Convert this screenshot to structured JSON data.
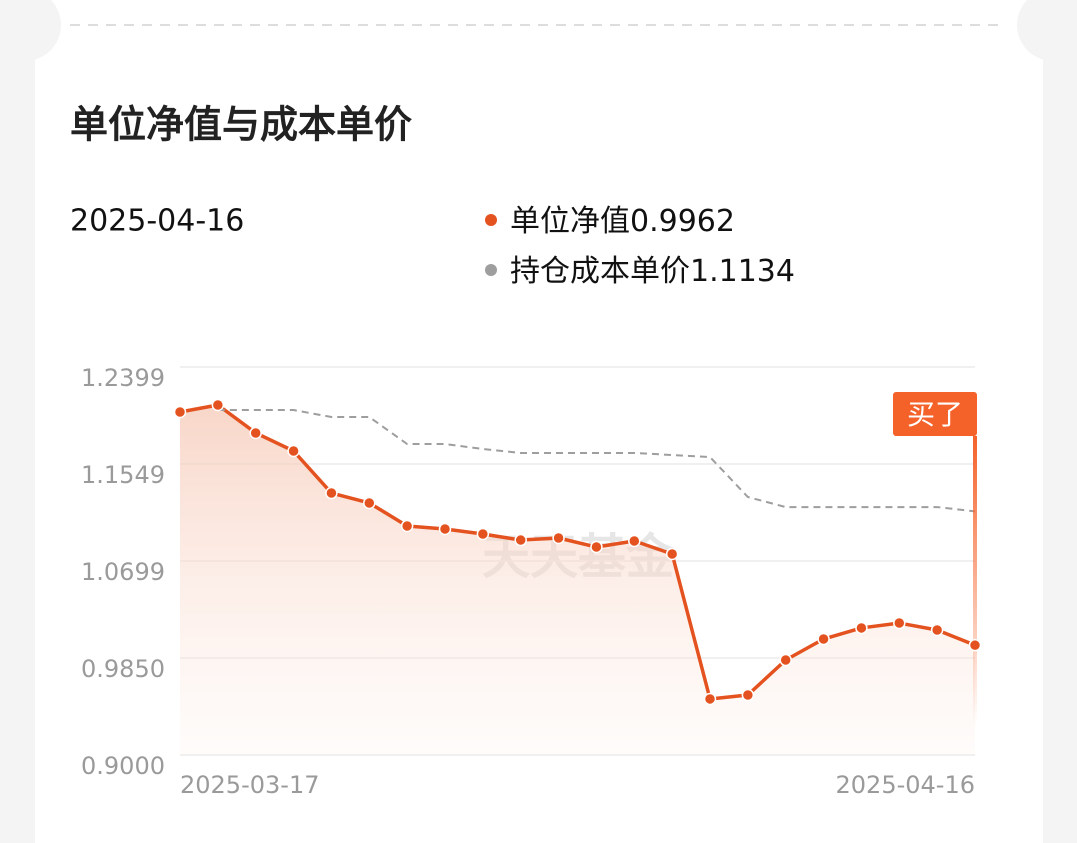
{
  "chart_data": {
    "type": "line",
    "title": "单位净值与成本单价",
    "categories": [
      "2025-03-17",
      null,
      null,
      null,
      null,
      null,
      null,
      null,
      null,
      null,
      null,
      null,
      null,
      null,
      null,
      null,
      null,
      null,
      null,
      null,
      null,
      "2025-04-16"
    ],
    "series": [
      {
        "name": "单位净值",
        "color": "#e4531f",
        "values": [
          1.2005,
          1.2066,
          1.1821,
          1.1663,
          1.1295,
          1.1208,
          1.1006,
          1.098,
          1.0936,
          1.0883,
          1.0901,
          1.0822,
          1.0875,
          1.0761,
          0.9491,
          0.9526,
          0.9832,
          1.0016,
          1.0113,
          1.0156,
          1.0095,
          0.9962
        ]
      },
      {
        "name": "持仓成本单价",
        "color": "#9e9e9e",
        "values": [
          null,
          1.2022,
          1.2022,
          1.2022,
          1.1961,
          1.1961,
          1.1724,
          1.1724,
          1.1681,
          1.1646,
          1.1646,
          1.1646,
          1.1646,
          1.1628,
          1.161,
          1.126,
          1.1172,
          1.1172,
          1.1172,
          1.1172,
          1.1172,
          1.1134
        ]
      }
    ],
    "ylim": [
      0.9,
      1.2399
    ],
    "yticks": [
      {
        "value": 0.9,
        "label": "0.9000"
      },
      {
        "value": 0.985,
        "label": "0.9850"
      },
      1.0699,
      1.1549,
      1.2399
    ],
    "grid": true,
    "annotation": "买了",
    "watermark": "天天基金"
  }
}
